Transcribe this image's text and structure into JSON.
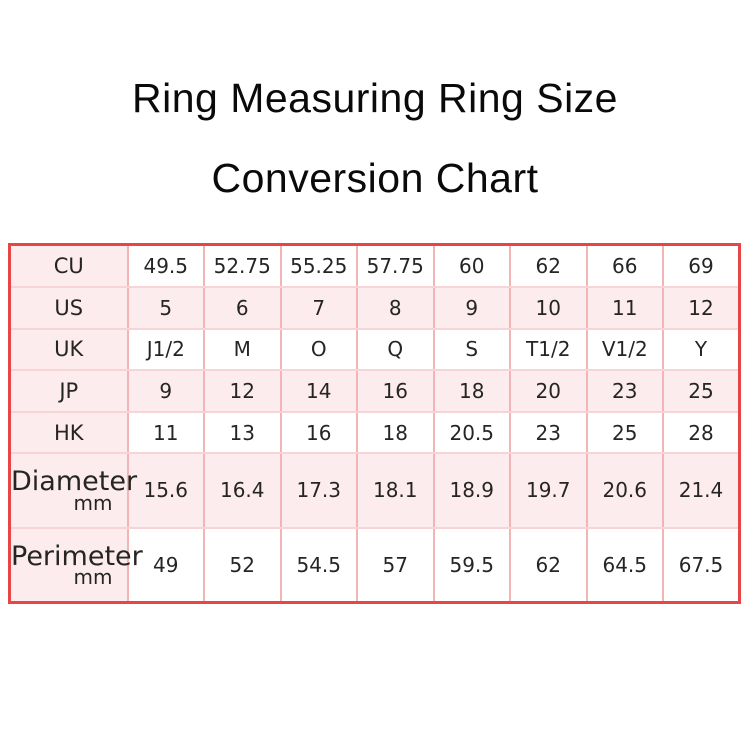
{
  "title": {
    "line1": "Ring Measuring Ring Size",
    "line2": "Conversion Chart"
  },
  "table": {
    "rows": [
      {
        "label": "CU",
        "sub": "",
        "values": [
          "49.5",
          "52.75",
          "55.25",
          "57.75",
          "60",
          "62",
          "66",
          "69"
        ]
      },
      {
        "label": "US",
        "sub": "",
        "values": [
          "5",
          "6",
          "7",
          "8",
          "9",
          "10",
          "11",
          "12"
        ]
      },
      {
        "label": "UK",
        "sub": "",
        "values": [
          "J1/2",
          "M",
          "O",
          "Q",
          "S",
          "T1/2",
          "V1/2",
          "Y"
        ]
      },
      {
        "label": "JP",
        "sub": "",
        "values": [
          "9",
          "12",
          "14",
          "16",
          "18",
          "20",
          "23",
          "25"
        ]
      },
      {
        "label": "HK",
        "sub": "",
        "values": [
          "11",
          "13",
          "16",
          "18",
          "20.5",
          "23",
          "25",
          "28"
        ]
      },
      {
        "label": "Diameter",
        "sub": "mm",
        "values": [
          "15.6",
          "16.4",
          "17.3",
          "18.1",
          "18.9",
          "19.7",
          "20.6",
          "21.4"
        ]
      },
      {
        "label": "Perimeter",
        "sub": "mm",
        "values": [
          "49",
          "52",
          "54.5",
          "57",
          "59.5",
          "62",
          "64.5",
          "67.5"
        ]
      }
    ]
  },
  "colors": {
    "outer_border": "#e64646",
    "inner_border_vertical": "#f2b4b4",
    "inner_border_horizontal": "#f8d4d6",
    "pink_cell": "#fdeced",
    "white_cell": "#ffffff",
    "text": "#252525",
    "title_text": "#0a0a0a"
  },
  "chart_data": {
    "type": "table",
    "title": "Ring Measuring Ring Size Conversion Chart",
    "rows": [
      {
        "label": "CU",
        "values": [
          49.5,
          52.75,
          55.25,
          57.75,
          60,
          62,
          66,
          69
        ]
      },
      {
        "label": "US",
        "values": [
          5,
          6,
          7,
          8,
          9,
          10,
          11,
          12
        ]
      },
      {
        "label": "UK",
        "values": [
          "J1/2",
          "M",
          "O",
          "Q",
          "S",
          "T1/2",
          "V1/2",
          "Y"
        ]
      },
      {
        "label": "JP",
        "values": [
          9,
          12,
          14,
          16,
          18,
          20,
          23,
          25
        ]
      },
      {
        "label": "HK",
        "values": [
          11,
          13,
          16,
          18,
          20.5,
          23,
          25,
          28
        ]
      },
      {
        "label": "Diameter mm",
        "values": [
          15.6,
          16.4,
          17.3,
          18.1,
          18.9,
          19.7,
          20.6,
          21.4
        ]
      },
      {
        "label": "Perimeter mm",
        "values": [
          49,
          52,
          54.5,
          57,
          59.5,
          62,
          64.5,
          67.5
        ]
      }
    ]
  }
}
